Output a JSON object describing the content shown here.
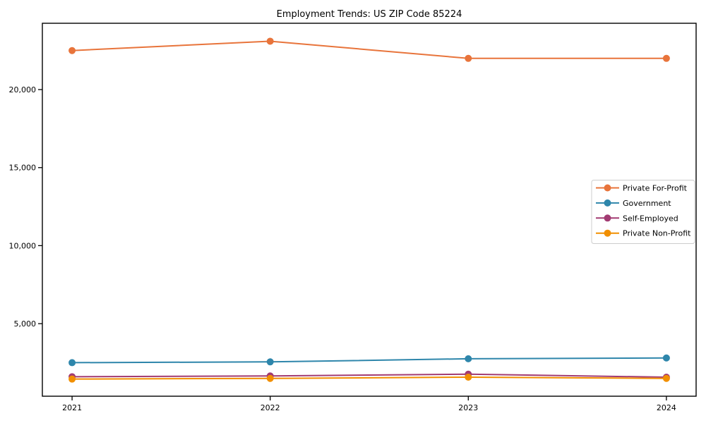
{
  "chart_data": {
    "type": "line",
    "title": "Employment Trends: US ZIP Code 85224",
    "xlabel": "",
    "ylabel": "",
    "x": [
      2021,
      2022,
      2023,
      2024
    ],
    "x_tick_labels": [
      "2021",
      "2022",
      "2023",
      "2024"
    ],
    "yticks": [
      5000,
      10000,
      15000,
      20000
    ],
    "ytick_labels": [
      "5,000",
      "10,000",
      "15,000",
      "20,000"
    ],
    "xlim": [
      2020.85,
      2024.15
    ],
    "ylim": [
      350,
      24250
    ],
    "grid": false,
    "legend_position": "center right",
    "axis_color": "#000000",
    "background_color": "#ffffff",
    "legend_border_color": "#cccccc",
    "series": [
      {
        "name": "Private For-Profit",
        "color": "#E8743B",
        "values": [
          22500,
          23100,
          22000,
          22000
        ]
      },
      {
        "name": "Government",
        "color": "#2E86AB",
        "values": [
          2500,
          2550,
          2750,
          2800
        ]
      },
      {
        "name": "Self-Employed",
        "color": "#A23B72",
        "values": [
          1600,
          1650,
          1760,
          1570
        ]
      },
      {
        "name": "Private Non-Profit",
        "color": "#F18F01",
        "values": [
          1450,
          1490,
          1570,
          1490
        ]
      }
    ]
  }
}
